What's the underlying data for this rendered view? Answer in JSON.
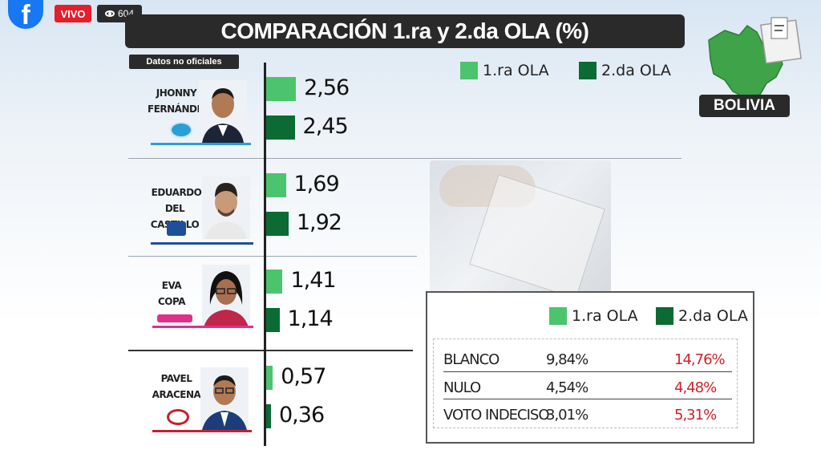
{
  "overlay": {
    "live_label": "VIVO",
    "viewer_count": "604",
    "facebook_icon": "facebook-icon",
    "eye_icon": "eye-icon"
  },
  "title": "COMPARACIÓN 1.ra y 2.da OLA (%)",
  "disclaimer": "Datos no oficiales",
  "region_label": "BOLIVIA",
  "legend": {
    "first": "1.ra OLA",
    "second": "2.da OLA"
  },
  "colors": {
    "first_wave": "#4cc46e",
    "second_wave": "#0b6b33",
    "title_bg": "#2a2a2a",
    "highlight_red": "#d0202b"
  },
  "chart_data": {
    "type": "bar",
    "categories": [
      "JHONNY FERNÁNDEZ",
      "EDUARDO DEL CASTILLO",
      "EVA COPA",
      "PAVEL ARACENA"
    ],
    "series": [
      {
        "name": "1.ra OLA",
        "values": [
          2.56,
          1.69,
          1.41,
          0.57
        ]
      },
      {
        "name": "2.da OLA",
        "values": [
          2.45,
          1.92,
          1.14,
          0.36
        ]
      }
    ],
    "value_labels": {
      "first": [
        "2,56",
        "1,69",
        "1,41",
        "0,57"
      ],
      "second": [
        "2,45",
        "1,92",
        "1,14",
        "0,36"
      ]
    },
    "title": "COMPARACIÓN 1.ra y 2.da OLA (%)",
    "xlabel": "",
    "ylabel": ""
  },
  "candidates": [
    {
      "line1": "JHONNY",
      "line2": "FERNÁNDEZ",
      "party_color": "#2a9fd6"
    },
    {
      "line1": "EDUARDO",
      "line2": "DEL CASTILLO",
      "party_color": "#1f4f9a"
    },
    {
      "line1": "EVA",
      "line2": "COPA",
      "party_color": "#e0308a"
    },
    {
      "line1": "PAVEL",
      "line2": "ARACENA",
      "party_color": "#c8202b"
    }
  ],
  "table": {
    "rows": [
      {
        "label": "BLANCO",
        "first": "9,84%",
        "second": "14,76%"
      },
      {
        "label": "NULO",
        "first": "4,54%",
        "second": "4,48%"
      },
      {
        "label": "VOTO INDECISO",
        "first": "3,01%",
        "second": "5,31%"
      }
    ]
  }
}
